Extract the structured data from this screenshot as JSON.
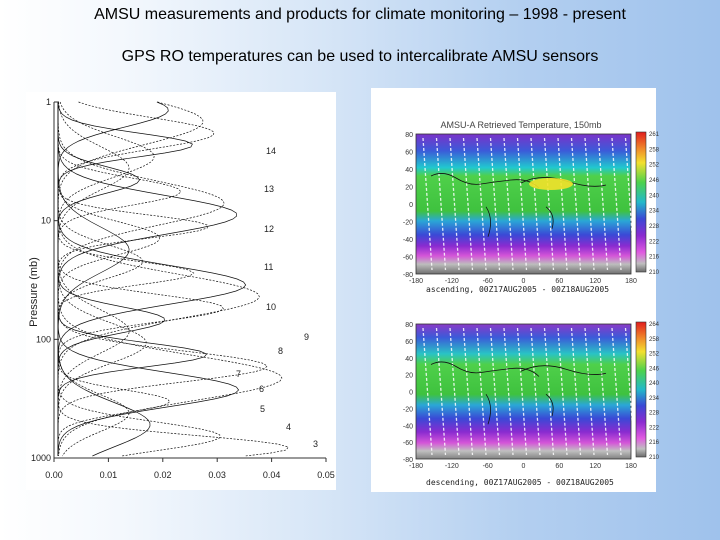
{
  "slide": {
    "title": "AMSU measurements and products for climate monitoring – 1998 - present",
    "subtitle": "GPS RO temperatures can be used  to intercalibrate AMSU sensors"
  },
  "weighting_function_plot": {
    "ylabel": "Pressure (mb)",
    "y_ticks": [
      "1",
      "10",
      "100",
      "1000"
    ],
    "x_ticks": [
      "0.00",
      "0.01",
      "0.02",
      "0.03",
      "0.04",
      "0.05"
    ],
    "channel_labels": [
      "14",
      "13",
      "12",
      "11",
      "10",
      "9",
      "8",
      "7",
      "6",
      "5",
      "4",
      "3"
    ]
  },
  "maps": {
    "title": "AMSU-A Retrieved Temperature, 150mb",
    "lat_ticks": [
      "80",
      "60",
      "40",
      "20",
      "0",
      "-20",
      "-40",
      "-60",
      "-80"
    ],
    "lon_ticks": [
      "-180",
      "-120",
      "-60",
      "0",
      "60",
      "120",
      "180"
    ],
    "top_caption": "ascending, 00Z17AUG2005 - 00Z18AUG2005",
    "bottom_caption": "descending, 00Z17AUG2005 - 00Z18AUG2005",
    "colorbar_top": [
      "261",
      "258",
      "252",
      "246",
      "240",
      "234",
      "228",
      "222",
      "216",
      "210"
    ],
    "colorbar_bottom": [
      "264",
      "258",
      "252",
      "246",
      "240",
      "234",
      "228",
      "222",
      "216",
      "210"
    ]
  }
}
